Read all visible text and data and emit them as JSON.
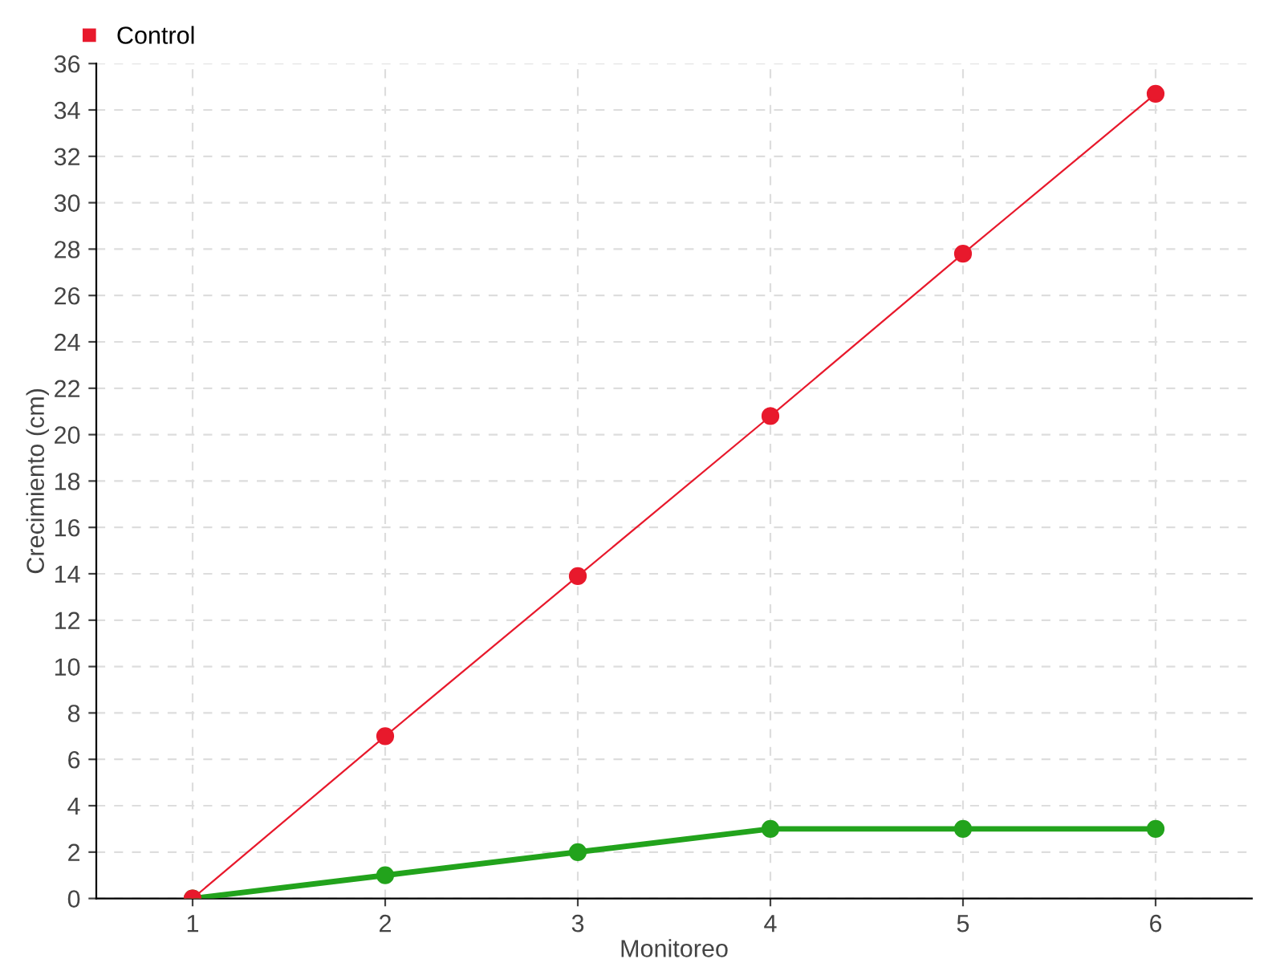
{
  "chart_data": {
    "type": "line",
    "xlabel": "Monitoreo",
    "ylabel": "Crecimiento (cm)",
    "x": [
      1,
      2,
      3,
      4,
      5,
      6
    ],
    "xlim": [
      0.5,
      6.5
    ],
    "xticks": [
      1,
      2,
      3,
      4,
      5,
      6
    ],
    "ylim": [
      0,
      36
    ],
    "yticks": [
      0,
      2,
      4,
      6,
      8,
      10,
      12,
      14,
      16,
      18,
      20,
      22,
      24,
      26,
      28,
      30,
      32,
      34,
      36
    ],
    "series": [
      {
        "color": "#22a31c",
        "values": [
          0,
          1,
          2,
          3,
          3,
          3
        ]
      },
      {
        "name": "Control",
        "color": "#e8192c",
        "values": [
          0,
          7,
          13.9,
          20.8,
          27.8,
          34.7
        ]
      }
    ],
    "marker": "circle",
    "line_style": "solid",
    "grid": true,
    "legend": "top left"
  }
}
